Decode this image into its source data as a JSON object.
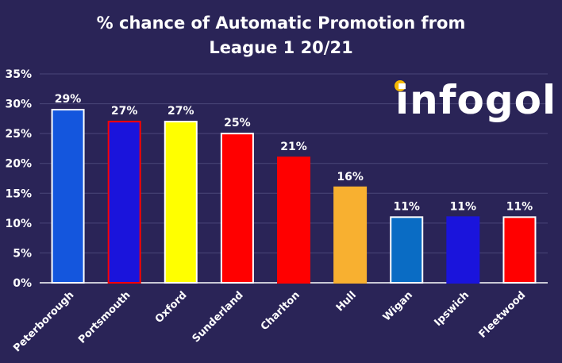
{
  "title_line1": "% chance of Automatic Promotion from",
  "title_line2": "League 1 20/21",
  "logo_text": "infogol",
  "chart_data": {
    "type": "bar",
    "title": "% chance of Automatic Promotion from League 1 20/21",
    "xlabel": "",
    "ylabel": "",
    "ylim": [
      0,
      35
    ],
    "yticks": [
      0,
      5,
      10,
      15,
      20,
      25,
      30,
      35
    ],
    "ytick_labels": [
      "0%",
      "5%",
      "10%",
      "15%",
      "20%",
      "25%",
      "30%",
      "35%"
    ],
    "grid": true,
    "categories": [
      "Peterborough",
      "Portsmouth",
      "Oxford",
      "Sunderland",
      "Charlton",
      "Hull",
      "Wigan",
      "Ipswich",
      "Fleetwood"
    ],
    "values": [
      29,
      27,
      27,
      25,
      21,
      16,
      11,
      11,
      11
    ],
    "value_labels": [
      "29%",
      "27%",
      "27%",
      "25%",
      "21%",
      "16%",
      "11%",
      "11%",
      "11%"
    ],
    "bar_colors": [
      "#1456dd",
      "#1a14dc",
      "#ffff00",
      "#ff0000",
      "#ff0000",
      "#f8b030",
      "#0a6cc4",
      "#1a14dc",
      "#ff0000"
    ],
    "bar_borders": [
      "#ffffff",
      "#ff0000",
      "#ffffff",
      "#ffffff",
      "#ff0000",
      "#f8b030",
      "#ffffff",
      "#1a14dc",
      "#ffffff"
    ]
  },
  "colors": {
    "background": "#2a2457",
    "gridline": "#4a4678",
    "axis": "#ffffff",
    "logo_accent": "#4aa3e6",
    "logo_ball": "#f5b800"
  }
}
